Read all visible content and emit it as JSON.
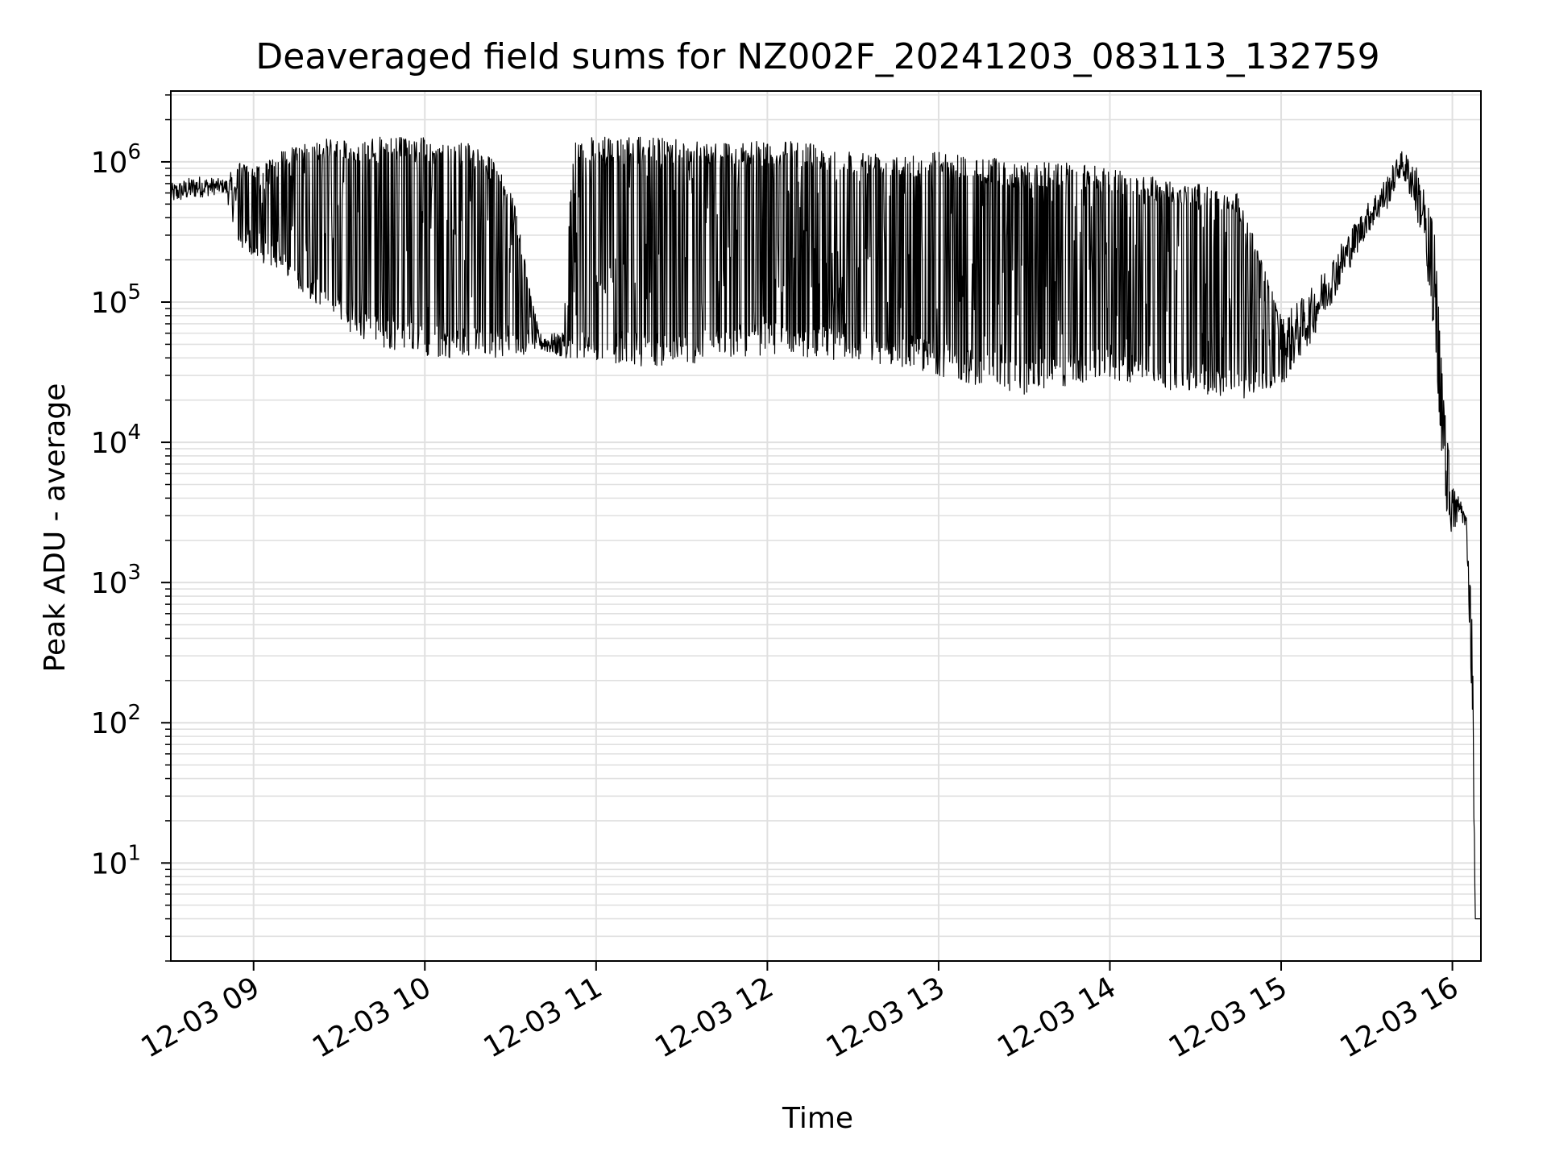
{
  "chart_data": {
    "type": "line",
    "title": "Deaveraged field sums for NZ002F_20241203_083113_132759",
    "xlabel": "Time",
    "ylabel": "Peak ADU - average",
    "yscale": "log",
    "ylim": [
      2,
      3200000
    ],
    "xlim": [
      "12-03 08:31",
      "12-03 16:10"
    ],
    "x_tick_labels": [
      "12-03 09",
      "12-03 10",
      "12-03 11",
      "12-03 12",
      "12-03 13",
      "12-03 14",
      "12-03 15",
      "12-03 16"
    ],
    "y_tick_labels": [
      {
        "base": "10",
        "exp": "1",
        "value": 10
      },
      {
        "base": "10",
        "exp": "2",
        "value": 100
      },
      {
        "base": "10",
        "exp": "3",
        "value": 1000
      },
      {
        "base": "10",
        "exp": "4",
        "value": 10000
      },
      {
        "base": "10",
        "exp": "5",
        "value": 100000
      },
      {
        "base": "10",
        "exp": "6",
        "value": 1000000
      }
    ],
    "grid": true,
    "line_color": "#000000",
    "grid_color": "#e0e0e0",
    "series": [
      {
        "x": [
          "12-03 08:31",
          "12-03 08:40",
          "12-03 08:50",
          "12-03 08:55",
          "12-03 09:00",
          "12-03 09:10",
          "12-03 09:20",
          "12-03 09:30",
          "12-03 09:40",
          "12-03 09:50",
          "12-03 10:00",
          "12-03 10:10",
          "12-03 10:20",
          "12-03 10:30",
          "12-03 10:40",
          "12-03 10:48",
          "12-03 10:52",
          "12-03 11:00",
          "12-03 11:15",
          "12-03 11:30",
          "12-03 11:45",
          "12-03 12:00",
          "12-03 12:15",
          "12-03 12:30",
          "12-03 12:45",
          "12-03 13:00",
          "12-03 13:15",
          "12-03 13:30",
          "12-03 13:45",
          "12-03 14:00",
          "12-03 14:15",
          "12-03 14:30",
          "12-03 14:45",
          "12-03 15:00",
          "12-03 15:10",
          "12-03 15:20",
          "12-03 15:30",
          "12-03 15:37",
          "12-03 15:42",
          "12-03 15:46",
          "12-03 15:50",
          "12-03 15:54",
          "12-03 15:57",
          "12-03 16:00",
          "12-03 16:03",
          "12-03 16:05",
          "12-03 16:07",
          "12-03 16:08",
          "12-03 16:10"
        ],
        "min": [
          500000,
          550000,
          600000,
          250000,
          200000,
          170000,
          100000,
          70000,
          50000,
          45000,
          40000,
          40000,
          40000,
          40000,
          45000,
          40000,
          40000,
          38000,
          35000,
          35000,
          40000,
          42000,
          40000,
          38000,
          35000,
          30000,
          25000,
          22000,
          25000,
          28000,
          25000,
          22000,
          20000,
          25000,
          50000,
          120000,
          300000,
          450000,
          800000,
          500000,
          250000,
          50000,
          4000,
          2000,
          3000,
          2000,
          100,
          4,
          4
        ],
        "max": [
          700000,
          800000,
          750000,
          1000000,
          900000,
          1200000,
          1400000,
          1500000,
          1500000,
          1500000,
          1500000,
          1400000,
          1300000,
          700000,
          60000,
          60000,
          1500000,
          1500000,
          1500000,
          1500000,
          1400000,
          1400000,
          1400000,
          1200000,
          1200000,
          1200000,
          1100000,
          1000000,
          1000000,
          900000,
          800000,
          700000,
          600000,
          80000,
          120000,
          250000,
          500000,
          800000,
          1200000,
          1100000,
          700000,
          300000,
          20000,
          5000,
          4000,
          3000,
          500,
          4,
          4
        ]
      }
    ]
  }
}
